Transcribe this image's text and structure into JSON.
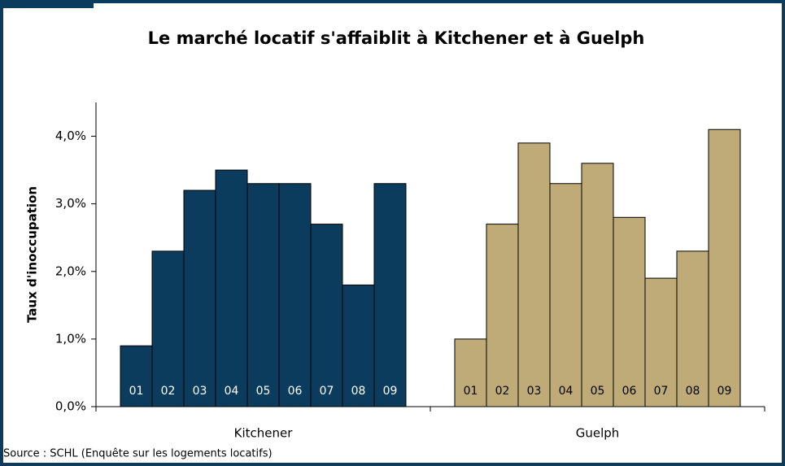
{
  "chart_data": {
    "type": "bar",
    "title": "Le marché locatif s'affaiblit à Kitchener et à Guelph",
    "y_label": "Taux d'inoccupation",
    "source": "Source : SCHL (Enquête sur les logements locatifs)",
    "categories": [
      "Kitchener",
      "Guelph"
    ],
    "groups": [
      {
        "color": "#0b3c5d",
        "labels": [
          "01",
          "02",
          "03",
          "04",
          "05",
          "06",
          "07",
          "08",
          "09"
        ],
        "values": [
          0.9,
          2.3,
          3.2,
          3.5,
          3.3,
          3.3,
          2.7,
          1.8,
          3.3
        ]
      },
      {
        "color": "#bfab78",
        "labels": [
          "01",
          "02",
          "03",
          "04",
          "05",
          "06",
          "07",
          "08",
          "09"
        ],
        "values": [
          1.0,
          2.7,
          3.9,
          3.3,
          3.6,
          2.8,
          1.9,
          2.3,
          4.1
        ]
      }
    ],
    "ylim": [
      0,
      4.5
    ],
    "yticks": [
      {
        "value": 0,
        "label": "0,0%"
      },
      {
        "value": 1,
        "label": "1,0%"
      },
      {
        "value": 2,
        "label": "2,0%"
      },
      {
        "value": 3,
        "label": "3,0%"
      },
      {
        "value": 4,
        "label": "4,0%"
      }
    ]
  }
}
